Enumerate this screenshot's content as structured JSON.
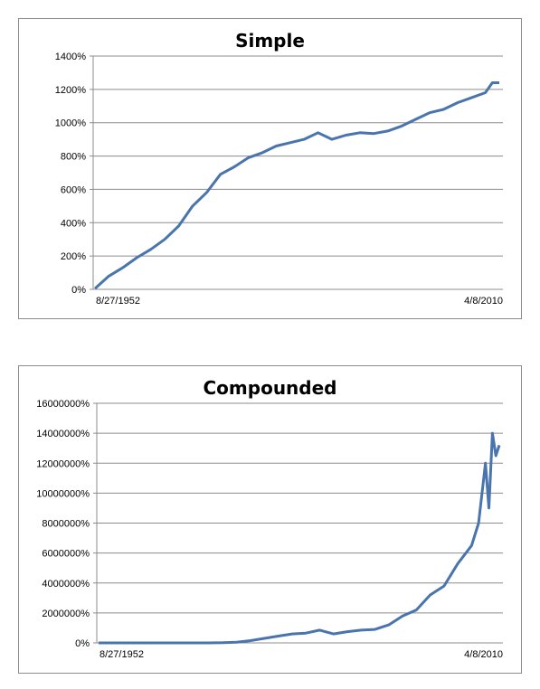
{
  "chart_data": [
    {
      "type": "line",
      "title": "Simple",
      "xlabel": "",
      "ylabel": "",
      "x_tick_labels": [
        "8/27/1952",
        "4/8/2010"
      ],
      "y_ticks": [
        "0%",
        "200%",
        "400%",
        "600%",
        "800%",
        "1000%",
        "1200%",
        "1400%"
      ],
      "ylim": [
        0,
        1400
      ],
      "grid": true,
      "legend": "none",
      "color": "#4a74ad",
      "series": [
        {
          "x": [
            "1952",
            "1954",
            "1956",
            "1958",
            "1960",
            "1962",
            "1964",
            "1966",
            "1968",
            "1970",
            "1972",
            "1974",
            "1976",
            "1978",
            "1980",
            "1982",
            "1984",
            "1986",
            "1988",
            "1990",
            "1992",
            "1994",
            "1996",
            "1998",
            "2000",
            "2002",
            "2004",
            "2006",
            "2008",
            "2009",
            "2010"
          ],
          "values": [
            5,
            80,
            130,
            190,
            240,
            300,
            380,
            500,
            580,
            690,
            735,
            790,
            820,
            860,
            880,
            900,
            940,
            900,
            925,
            940,
            935,
            950,
            980,
            1020,
            1060,
            1080,
            1120,
            1150,
            1180,
            1240,
            1240
          ]
        }
      ]
    },
    {
      "type": "line",
      "title": "Compounded",
      "xlabel": "",
      "ylabel": "",
      "x_tick_labels": [
        "8/27/1952",
        "4/8/2010"
      ],
      "y_ticks": [
        "0%",
        "2000000%",
        "4000000%",
        "6000000%",
        "8000000%",
        "10000000%",
        "12000000%",
        "14000000%",
        "16000000%"
      ],
      "ylim": [
        0,
        16000000
      ],
      "grid": true,
      "legend": "none",
      "color": "#4a74ad",
      "series": [
        {
          "x": [
            "1952",
            "1956",
            "1960",
            "1964",
            "1968",
            "1970",
            "1972",
            "1974",
            "1976",
            "1978",
            "1980",
            "1982",
            "1984",
            "1986",
            "1988",
            "1990",
            "1992",
            "1994",
            "1996",
            "1998",
            "2000",
            "2002",
            "2004",
            "2006",
            "2007",
            "2008",
            "2008.5",
            "2009",
            "2009.5",
            "2010"
          ],
          "values": [
            0,
            0,
            0,
            0,
            0,
            10000,
            50000,
            150000,
            300000,
            450000,
            600000,
            650000,
            850000,
            600000,
            750000,
            850000,
            900000,
            1200000,
            1800000,
            2200000,
            3200000,
            3800000,
            5300000,
            6500000,
            8000000,
            12000000,
            9000000,
            14000000,
            12500000,
            13200000
          ]
        }
      ]
    }
  ]
}
